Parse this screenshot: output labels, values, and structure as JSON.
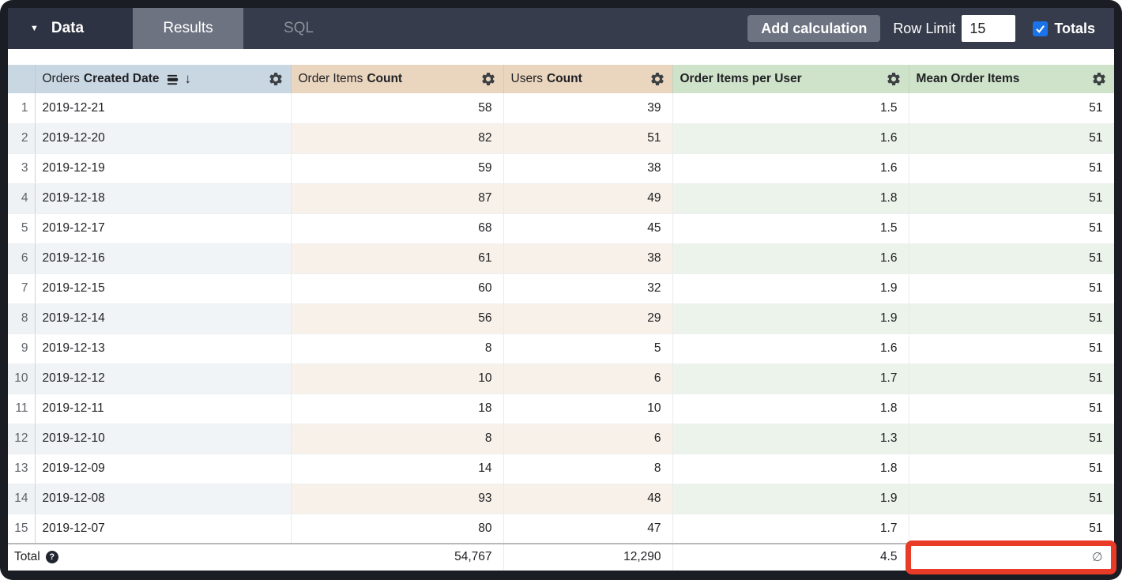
{
  "topbar": {
    "data_label": "Data",
    "tabs": {
      "results": "Results",
      "sql": "SQL"
    },
    "add_calculation_label": "Add calculation",
    "row_limit_label": "Row Limit",
    "row_limit_value": "15",
    "totals_label": "Totals",
    "totals_checked": true
  },
  "icons": {
    "caret_down": "▼",
    "sort_desc_arrow": "↓",
    "help_glyph": "?"
  },
  "colors": {
    "topbar_bg": "#363c4b",
    "data_section_bg": "#2d3342",
    "active_tab_bg": "#6d7380",
    "dimension_header_bg": "#c9d7e3",
    "measure_header_bg": "#ead5bf",
    "calculation_header_bg": "#cfe2ca",
    "checkbox_blue": "#1a73e8",
    "red_highlight": "#e83b28"
  },
  "table": {
    "columns": [
      {
        "view": "Orders",
        "field": "Created Date",
        "type": "dimension",
        "sorted": "desc"
      },
      {
        "view": "Order Items",
        "field": "Count",
        "type": "measure"
      },
      {
        "view": "Users",
        "field": "Count",
        "type": "measure"
      },
      {
        "view": "",
        "field": "Order Items per User",
        "type": "calculation"
      },
      {
        "view": "",
        "field": "Mean Order Items",
        "type": "calculation"
      }
    ],
    "rows": [
      [
        "2019-12-21",
        "58",
        "39",
        "1.5",
        "51"
      ],
      [
        "2019-12-20",
        "82",
        "51",
        "1.6",
        "51"
      ],
      [
        "2019-12-19",
        "59",
        "38",
        "1.6",
        "51"
      ],
      [
        "2019-12-18",
        "87",
        "49",
        "1.8",
        "51"
      ],
      [
        "2019-12-17",
        "68",
        "45",
        "1.5",
        "51"
      ],
      [
        "2019-12-16",
        "61",
        "38",
        "1.6",
        "51"
      ],
      [
        "2019-12-15",
        "60",
        "32",
        "1.9",
        "51"
      ],
      [
        "2019-12-14",
        "56",
        "29",
        "1.9",
        "51"
      ],
      [
        "2019-12-13",
        "8",
        "5",
        "1.6",
        "51"
      ],
      [
        "2019-12-12",
        "10",
        "6",
        "1.7",
        "51"
      ],
      [
        "2019-12-11",
        "18",
        "10",
        "1.8",
        "51"
      ],
      [
        "2019-12-10",
        "8",
        "6",
        "1.3",
        "51"
      ],
      [
        "2019-12-09",
        "14",
        "8",
        "1.8",
        "51"
      ],
      [
        "2019-12-08",
        "93",
        "48",
        "1.9",
        "51"
      ],
      [
        "2019-12-07",
        "80",
        "47",
        "1.7",
        "51"
      ]
    ],
    "total": {
      "label": "Total",
      "order_items_count": "54,767",
      "users_count": "12,290",
      "order_items_per_user": "4.5",
      "mean_order_items": "∅"
    }
  }
}
